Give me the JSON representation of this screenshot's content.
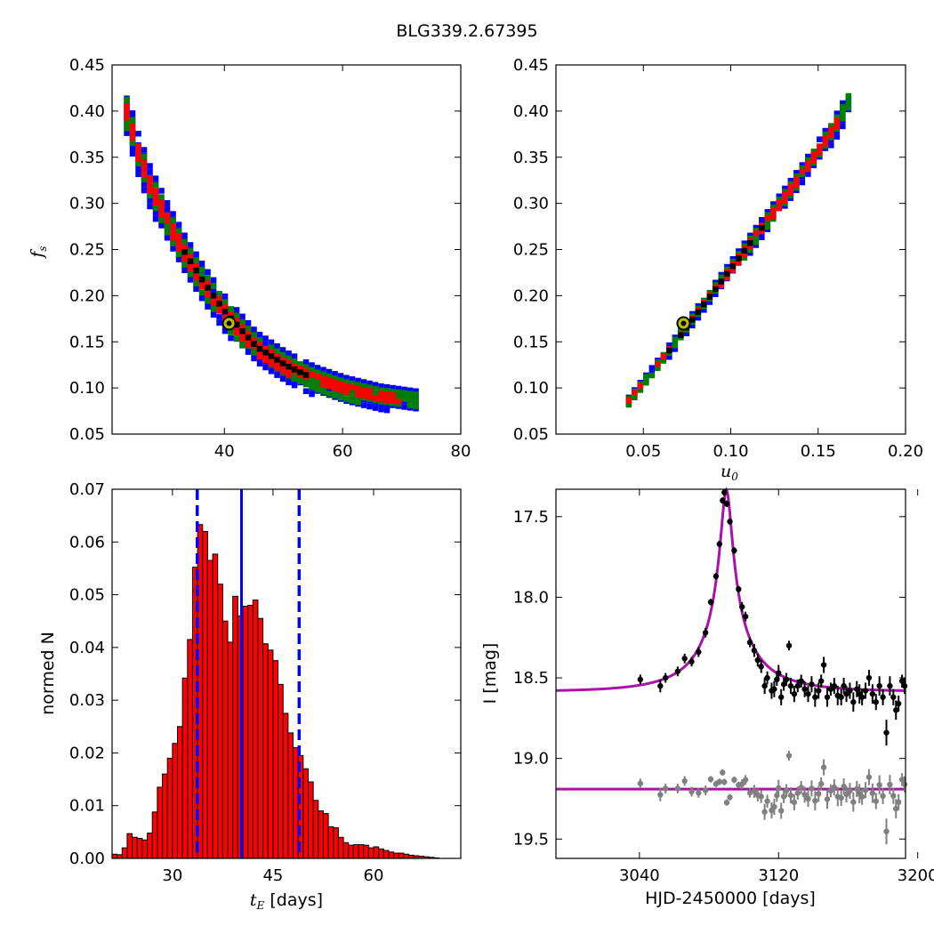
{
  "title": "BLG339.2.67395",
  "chart_data": [
    {
      "type": "heatmap",
      "panel": "fs_vs_tE",
      "xlabel": "",
      "ylabel": "f_s",
      "xlim": [
        21,
        80
      ],
      "ylim": [
        0.05,
        0.45
      ],
      "xticks": [
        40,
        60,
        80
      ],
      "yticks": [
        0.05,
        0.1,
        0.15,
        0.2,
        0.25,
        0.3,
        0.35,
        0.4,
        0.45
      ],
      "colors": {
        "level1": "#ff0000",
        "level2": "#008000",
        "level3": "#0000ff",
        "best": "#000000",
        "marker_fill": "#bfbf00"
      },
      "band_ridge": {
        "x": [
          23,
          25,
          27,
          30,
          33,
          36,
          40,
          45,
          50,
          55,
          60,
          66,
          72
        ],
        "y": [
          0.4,
          0.355,
          0.32,
          0.28,
          0.245,
          0.215,
          0.18,
          0.145,
          0.125,
          0.11,
          0.1,
          0.092,
          0.088
        ]
      },
      "best_fit": {
        "x": 40.8,
        "y": 0.17
      }
    },
    {
      "type": "heatmap",
      "panel": "fs_vs_u0",
      "xlabel": "u_0",
      "ylabel": "",
      "xlim": [
        0.0,
        0.2
      ],
      "ylim": [
        0.05,
        0.45
      ],
      "xticks": [
        0.05,
        0.1,
        0.15,
        0.2
      ],
      "yticks": [
        0.05,
        0.1,
        0.15,
        0.2,
        0.25,
        0.3,
        0.35,
        0.4,
        0.45
      ],
      "band_ridge": {
        "x": [
          0.04,
          0.06,
          0.08,
          0.1,
          0.12,
          0.14,
          0.16,
          0.167
        ],
        "y": [
          0.088,
          0.135,
          0.185,
          0.235,
          0.285,
          0.335,
          0.39,
          0.415
        ]
      },
      "best_fit": {
        "x": 0.073,
        "y": 0.17
      }
    },
    {
      "type": "bar",
      "panel": "tE_histogram",
      "xlabel": "days",
      "ylabel": "normed N",
      "xlim": [
        21.0,
        73.0
      ],
      "ylim": [
        0.0,
        0.07
      ],
      "xticks": [
        30,
        45,
        60
      ],
      "yticks": [
        0.0,
        0.01,
        0.02,
        0.03,
        0.04,
        0.05,
        0.06,
        0.07
      ],
      "bin_start": 21.0,
      "bin_width": 0.75,
      "values": [
        0.0008,
        0.0007,
        0.002,
        0.0047,
        0.004,
        0.0038,
        0.0035,
        0.0048,
        0.0088,
        0.0135,
        0.016,
        0.019,
        0.0218,
        0.025,
        0.0342,
        0.0415,
        0.0552,
        0.0633,
        0.062,
        0.0565,
        0.0577,
        0.052,
        0.045,
        0.041,
        0.0497,
        0.046,
        0.0478,
        0.048,
        0.049,
        0.0455,
        0.0407,
        0.0395,
        0.0375,
        0.033,
        0.0275,
        0.0238,
        0.021,
        0.0195,
        0.017,
        0.0145,
        0.011,
        0.009,
        0.0085,
        0.006,
        0.0058,
        0.004,
        0.003,
        0.0025,
        0.0026,
        0.0026,
        0.0025,
        0.002,
        0.0022,
        0.0018,
        0.0015,
        0.0012,
        0.001,
        0.001,
        0.0008,
        0.0006,
        0.0005,
        0.0004,
        0.0003,
        0.0002,
        0.0001,
        0.0,
        0.0,
        0.0,
        0.0
      ],
      "bar_color": "#ff0000",
      "median": 40.3,
      "lower": 33.7,
      "upper": 48.9,
      "line_color": "#0000ff"
    },
    {
      "type": "scatter",
      "panel": "light_curve",
      "xlabel": "HJD-2450000 [days]",
      "ylabel": "I [mag]",
      "xlim": [
        2992,
        3193
      ],
      "ylim": [
        19.62,
        17.33
      ],
      "xticks": [
        3040,
        3120,
        3200
      ],
      "yticks": [
        17.5,
        18.0,
        18.5,
        19.0,
        19.5
      ],
      "model": {
        "t0": 3090.0,
        "tE": 40.8,
        "u0": 0.073,
        "fs": 0.17,
        "base_mag": 18.585,
        "color": "#aa11aa"
      },
      "residual_baseline": 19.19,
      "data_color": "#000000",
      "residual_color": "#808080",
      "points": [
        [
          3040.5,
          18.51,
          0.03
        ],
        [
          3052,
          18.55,
          0.04
        ],
        [
          3055,
          18.5,
          0.03
        ],
        [
          3062,
          18.46,
          0.03
        ],
        [
          3066,
          18.38,
          0.03
        ],
        [
          3070,
          18.4,
          0.03
        ],
        [
          3074,
          18.34,
          0.03
        ],
        [
          3078,
          18.22,
          0.03
        ],
        [
          3081,
          18.03,
          0.02
        ],
        [
          3084,
          17.87,
          0.02
        ],
        [
          3086,
          17.67,
          0.02
        ],
        [
          3087.8,
          17.4,
          0.02
        ],
        [
          3088.8,
          17.35,
          0.02
        ],
        [
          3090.2,
          17.42,
          0.02
        ],
        [
          3092,
          17.53,
          0.02
        ],
        [
          3094.5,
          17.71,
          0.02
        ],
        [
          3097,
          17.95,
          0.02
        ],
        [
          3099,
          18.06,
          0.03
        ],
        [
          3101,
          18.12,
          0.03
        ],
        [
          3103.5,
          18.28,
          0.03
        ],
        [
          3106,
          18.33,
          0.04
        ],
        [
          3108,
          18.39,
          0.04
        ],
        [
          3110,
          18.43,
          0.04
        ],
        [
          3112,
          18.55,
          0.05
        ],
        [
          3113.5,
          18.5,
          0.04
        ],
        [
          3116,
          18.58,
          0.05
        ],
        [
          3117.5,
          18.57,
          0.05
        ],
        [
          3119,
          18.51,
          0.04
        ],
        [
          3120,
          18.47,
          0.05
        ],
        [
          3121.5,
          18.62,
          0.05
        ],
        [
          3123,
          18.54,
          0.04
        ],
        [
          3124.5,
          18.51,
          0.04
        ],
        [
          3126,
          18.3,
          0.03
        ],
        [
          3127,
          18.55,
          0.05
        ],
        [
          3129,
          18.6,
          0.05
        ],
        [
          3131,
          18.55,
          0.04
        ],
        [
          3133,
          18.52,
          0.04
        ],
        [
          3135,
          18.57,
          0.05
        ],
        [
          3137,
          18.6,
          0.05
        ],
        [
          3139,
          18.54,
          0.05
        ],
        [
          3141,
          18.62,
          0.06
        ],
        [
          3143,
          18.58,
          0.05
        ],
        [
          3144.5,
          18.52,
          0.04
        ],
        [
          3146,
          18.42,
          0.05
        ],
        [
          3148,
          18.62,
          0.06
        ],
        [
          3150,
          18.57,
          0.04
        ],
        [
          3152,
          18.55,
          0.05
        ],
        [
          3154,
          18.61,
          0.06
        ],
        [
          3156,
          18.62,
          0.05
        ],
        [
          3157.5,
          18.55,
          0.05
        ],
        [
          3159,
          18.6,
          0.05
        ],
        [
          3161,
          18.58,
          0.05
        ],
        [
          3163,
          18.65,
          0.06
        ],
        [
          3165,
          18.57,
          0.05
        ],
        [
          3166.5,
          18.6,
          0.06
        ],
        [
          3168,
          18.62,
          0.05
        ],
        [
          3170,
          18.58,
          0.05
        ],
        [
          3172,
          18.5,
          0.05
        ],
        [
          3174,
          18.6,
          0.06
        ],
        [
          3176,
          18.65,
          0.05
        ],
        [
          3178,
          18.55,
          0.06
        ],
        [
          3180,
          18.62,
          0.05
        ],
        [
          3182,
          18.84,
          0.08
        ],
        [
          3184,
          18.55,
          0.06
        ],
        [
          3186,
          18.62,
          0.05
        ],
        [
          3187.5,
          18.7,
          0.06
        ],
        [
          3189,
          18.66,
          0.05
        ],
        [
          3191,
          18.52,
          0.04
        ],
        [
          3192.5,
          18.55,
          0.05
        ]
      ]
    }
  ]
}
